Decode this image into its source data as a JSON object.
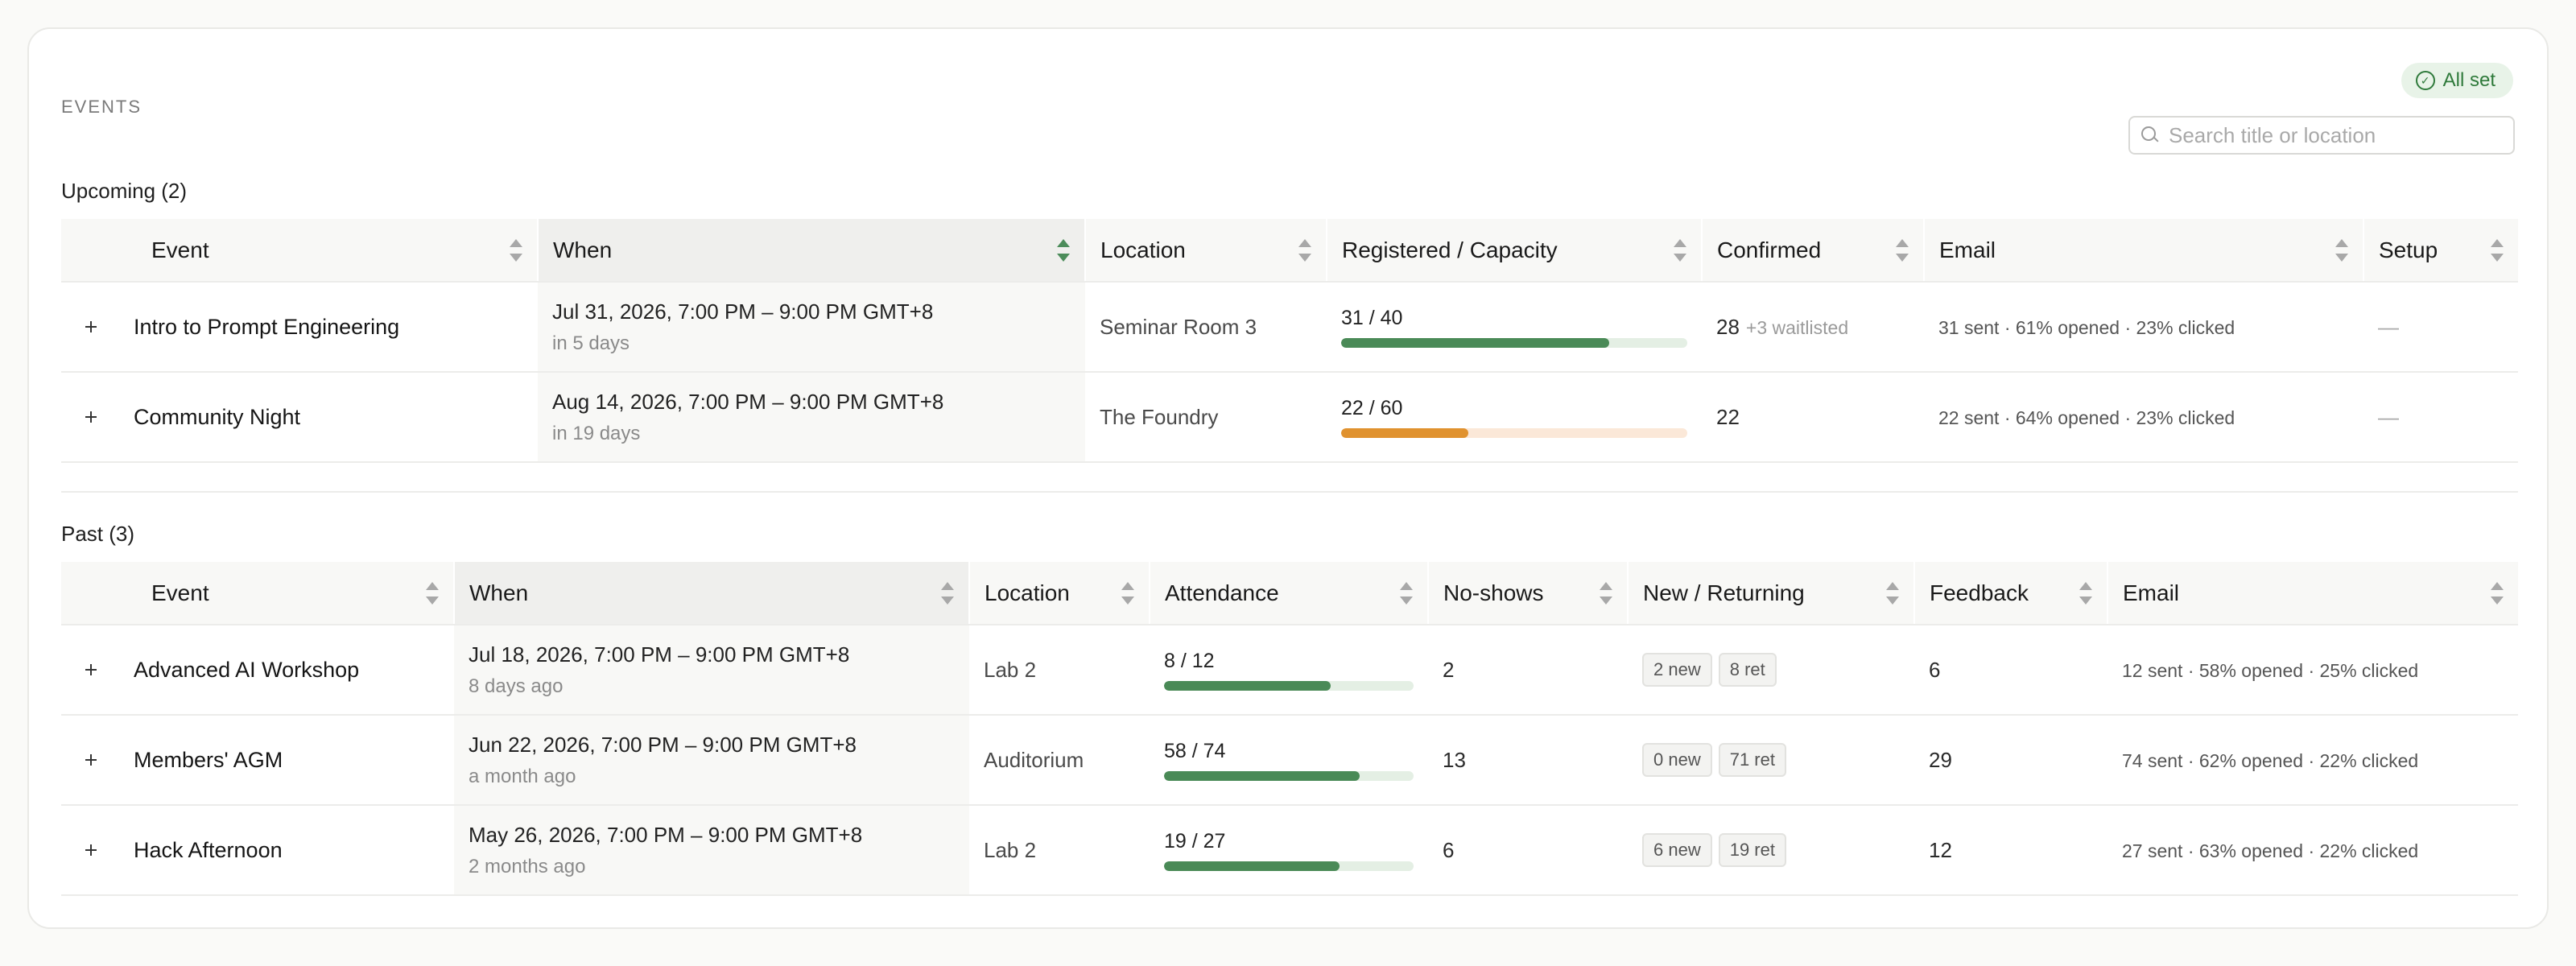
{
  "header": {
    "section_label": "EVENTS",
    "status": "All set",
    "search_placeholder": "Search title or location"
  },
  "upcoming": {
    "title": "Upcoming (2)",
    "columns": [
      "Event",
      "When",
      "Location",
      "Registered / Capacity",
      "Confirmed",
      "Email",
      "Setup"
    ],
    "rows": [
      {
        "event": "Intro to Prompt Engineering",
        "when": "Jul 31, 2026, 7:00 PM – 9:00 PM GMT+8",
        "when_rel": "in 5 days",
        "location": "Seminar Room 3",
        "registered": "31 / 40",
        "registered_ratio": 0.775,
        "bar_color": "green",
        "confirmed": "28",
        "confirmed_extra": "+3 waitlisted",
        "email": "31 sent · 61% opened · 23% clicked",
        "setup": "—"
      },
      {
        "event": "Community Night",
        "when": "Aug 14, 2026, 7:00 PM – 9:00 PM GMT+8",
        "when_rel": "in 19 days",
        "location": "The Foundry",
        "registered": "22 / 60",
        "registered_ratio": 0.367,
        "bar_color": "orange",
        "confirmed": "22",
        "confirmed_extra": "",
        "email": "22 sent · 64% opened · 23% clicked",
        "setup": "—"
      }
    ]
  },
  "past": {
    "title": "Past (3)",
    "columns": [
      "Event",
      "When",
      "Location",
      "Attendance",
      "No-shows",
      "New / Returning",
      "Feedback",
      "Email"
    ],
    "rows": [
      {
        "event": "Advanced AI Workshop",
        "when": "Jul 18, 2026, 7:00 PM – 9:00 PM GMT+8",
        "when_rel": "8 days ago",
        "location": "Lab 2",
        "attendance": "8 / 12",
        "attendance_ratio": 0.667,
        "no_shows": "2",
        "new": "2 new",
        "returning": "8 ret",
        "feedback": "6",
        "email": "12 sent · 58% opened · 25% clicked"
      },
      {
        "event": "Members' AGM",
        "when": "Jun 22, 2026, 7:00 PM – 9:00 PM GMT+8",
        "when_rel": "a month ago",
        "location": "Auditorium",
        "attendance": "58 / 74",
        "attendance_ratio": 0.784,
        "no_shows": "13",
        "new": "0 new",
        "returning": "71 ret",
        "feedback": "29",
        "email": "74 sent · 62% opened · 22% clicked"
      },
      {
        "event": "Hack Afternoon",
        "when": "May 26, 2026, 7:00 PM – 9:00 PM GMT+8",
        "when_rel": "2 months ago",
        "location": "Lab 2",
        "attendance": "19 / 27",
        "attendance_ratio": 0.704,
        "no_shows": "6",
        "new": "6 new",
        "returning": "19 ret",
        "feedback": "12",
        "email": "27 sent · 63% opened · 22% clicked"
      }
    ]
  },
  "colors": {
    "accent_green": "#4a8a57",
    "accent_orange": "#e0922f",
    "status_green": "#2f7a3b"
  }
}
